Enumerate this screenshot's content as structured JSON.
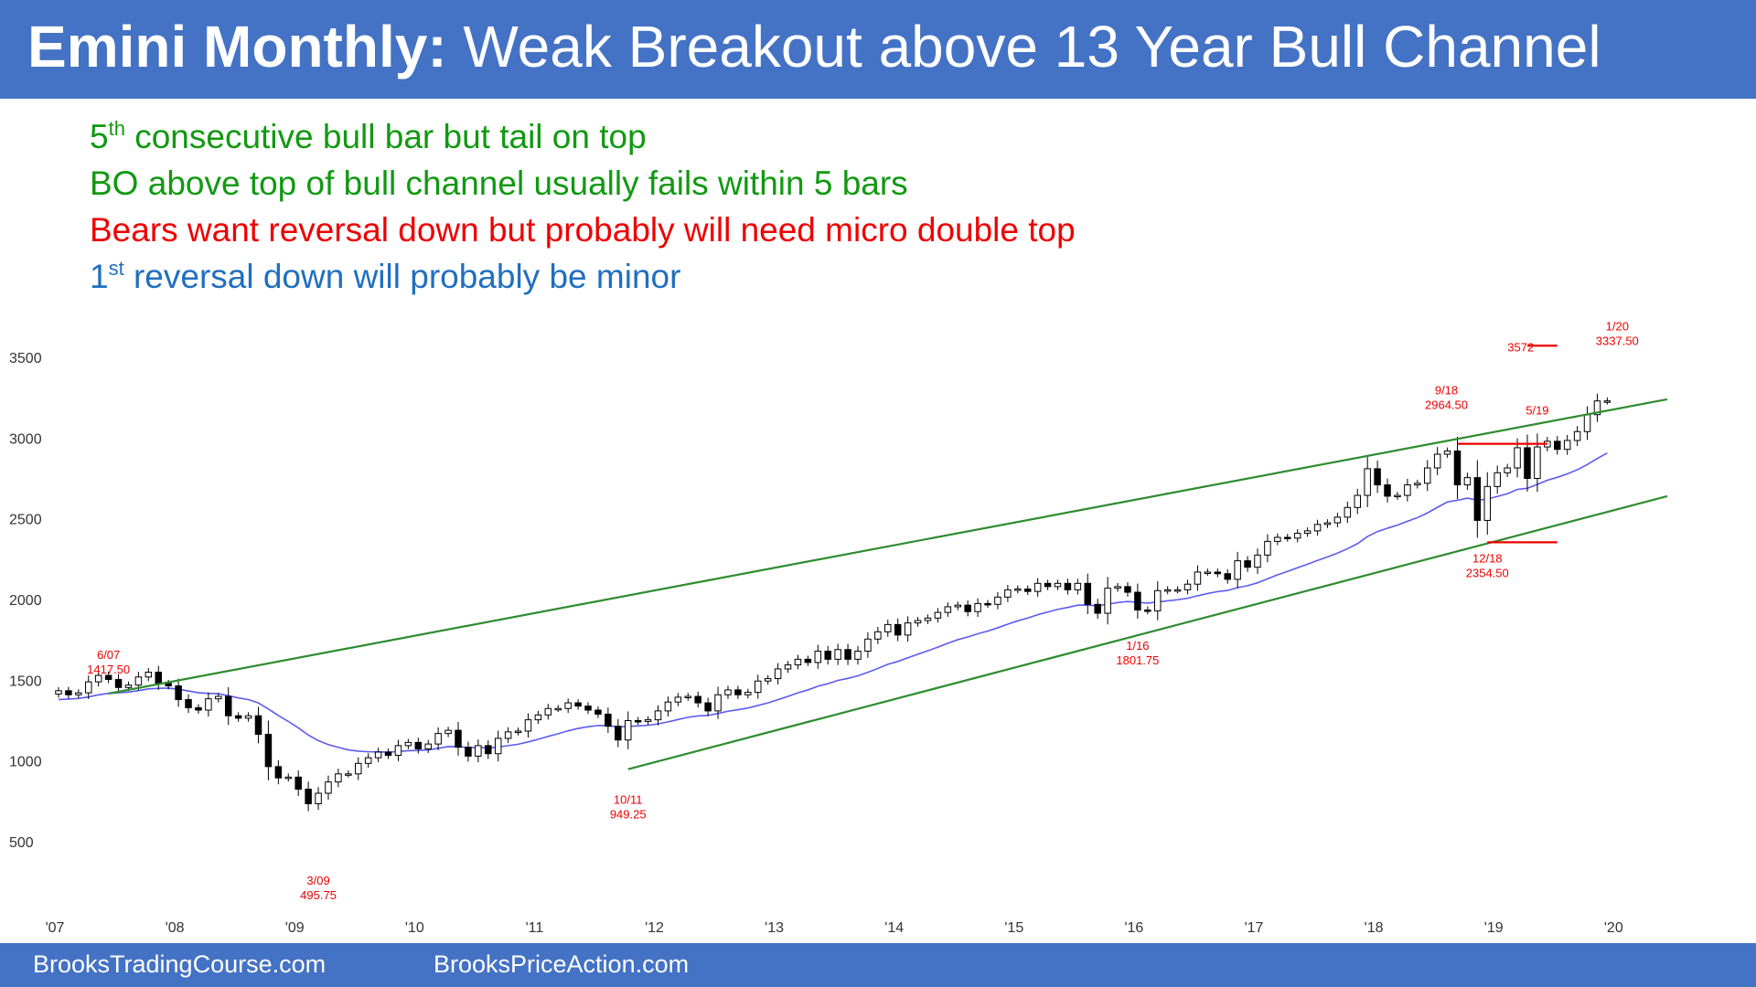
{
  "title": {
    "bold": "Emini Monthly:",
    "rest": "Weak Breakout above 13 Year Bull Channel"
  },
  "notes": [
    {
      "pre": "5",
      "sup": "th",
      "post": " consecutive bull bar but tail on top",
      "color": "#119911"
    },
    {
      "pre": "BO above top of bull channel usually fails within 5 bars",
      "sup": "",
      "post": "",
      "color": "#119911"
    },
    {
      "pre": "Bears want reversal down but probably will need micro double top",
      "sup": "",
      "post": "",
      "color": "#ee0000"
    },
    {
      "pre": "1",
      "sup": "st",
      "post": " reversal down will probably be minor",
      "color": "#1f6fbf"
    }
  ],
  "chart_data": {
    "type": "candlestick",
    "x_tick_labels": [
      "'07",
      "'08",
      "'09",
      "'10",
      "'11",
      "'12",
      "'13",
      "'14",
      "'15",
      "'16",
      "'17",
      "'18",
      "'19",
      "'20"
    ],
    "y_tick_labels": [
      "3500",
      "3000",
      "2500",
      "2000",
      "1500",
      "1000",
      "500"
    ],
    "ylim": [
      200,
      3800
    ],
    "grid": false,
    "series": [
      {
        "name": "",
        "type": "candles",
        "start": "2007-01",
        "close": [
          1435,
          1410,
          1422,
          1490,
          1530,
          1505,
          1455,
          1470,
          1520,
          1550,
          1480,
          1465,
          1380,
          1330,
          1315,
          1385,
          1400,
          1280,
          1265,
          1280,
          1165,
          965,
          895,
          900,
          825,
          735,
          800,
          870,
          920,
          920,
          985,
          1020,
          1055,
          1035,
          1095,
          1115,
          1075,
          1105,
          1170,
          1190,
          1085,
          1030,
          1095,
          1045,
          1140,
          1180,
          1185,
          1255,
          1285,
          1325,
          1325,
          1360,
          1340,
          1315,
          1290,
          1215,
          1130,
          1250,
          1245,
          1255,
          1310,
          1365,
          1395,
          1400,
          1360,
          1310,
          1410,
          1440,
          1410,
          1425,
          1495,
          1510,
          1570,
          1595,
          1630,
          1610,
          1680,
          1630,
          1690,
          1630,
          1680,
          1755,
          1800,
          1845,
          1780,
          1855,
          1870,
          1885,
          1920,
          1955,
          1965,
          1925,
          1975,
          1970,
          2015,
          2060,
          2065,
          2050,
          2100,
          2080,
          2100,
          2060,
          2100,
          1970,
          1915,
          2070,
          2080,
          2045,
          1935,
          1930,
          2055,
          2060,
          2060,
          2095,
          2170,
          2170,
          2160,
          2125,
          2240,
          2200,
          2275,
          2360,
          2385,
          2380,
          2410,
          2425,
          2465,
          2475,
          2510,
          2570,
          2645,
          2810,
          2710,
          2640,
          2645,
          2710,
          2720,
          2815,
          2900,
          2920,
          2710,
          2755,
          2490,
          2700,
          2785,
          2815,
          2940,
          2750,
          2945,
          2980,
          2930,
          2985,
          3040,
          3145,
          3230,
          3230
        ],
        "high_low_tails": true,
        "moving_average": "20-bar EMA",
        "ma_color": "#5b5bf0"
      }
    ],
    "annotations": [
      {
        "label": "6/07",
        "value": "1417.50",
        "date": "2007-06",
        "price": 1417.5
      },
      {
        "label": "3/09",
        "value": "495.75",
        "date": "2009-03",
        "price": 495.75
      },
      {
        "label": "10/11",
        "value": "949.25",
        "date": "2011-10",
        "price": 949.25
      },
      {
        "label": "1/16",
        "value": "1801.75",
        "date": "2016-01",
        "price": 1801.75
      },
      {
        "label": "9/18",
        "value": "2964.50",
        "date": "2018-09",
        "price": 2964.5
      },
      {
        "label": "12/18",
        "value": "2354.50",
        "date": "2018-12",
        "price": 2354.5
      },
      {
        "label": "5/19",
        "value": "",
        "date": "2019-05",
        "price": 2964.5
      },
      {
        "label": "1/20",
        "value": "3337.50",
        "date": "2020-01",
        "price": 3337.5
      },
      {
        "label": "3572",
        "value": "",
        "date": "2019-07",
        "price": 3572
      }
    ],
    "channel_lines": [
      {
        "name": "upper",
        "color": "#2e8b2e",
        "from": {
          "date": "2007-06",
          "price": 1417.5
        },
        "to": {
          "date": "2020-06",
          "price": 3240
        }
      },
      {
        "name": "lower",
        "color": "#2e8b2e",
        "from": {
          "date": "2011-10",
          "price": 949.25
        },
        "to": {
          "date": "2020-06",
          "price": 2640
        }
      }
    ],
    "horizontal_lines": [
      {
        "name": "double-top-line",
        "color": "#ee0000",
        "price": 2964.5,
        "from": "2018-09",
        "to": "2019-06"
      },
      {
        "name": "low-line",
        "color": "#ee0000",
        "price": 2354.5,
        "from": "2018-12",
        "to": "2019-07"
      },
      {
        "name": "target-line",
        "color": "#ee0000",
        "price": 3572,
        "from": "2019-04",
        "to": "2019-07"
      }
    ],
    "colors": {
      "bull_body": "#ffffff",
      "bear_body": "#000000",
      "annotation": "#ee0000",
      "channel": "#2e8b2e",
      "ma": "#5b5bf0"
    }
  },
  "footer": {
    "left": "BrooksTradingCourse.com",
    "right": "BrooksPriceAction.com"
  }
}
